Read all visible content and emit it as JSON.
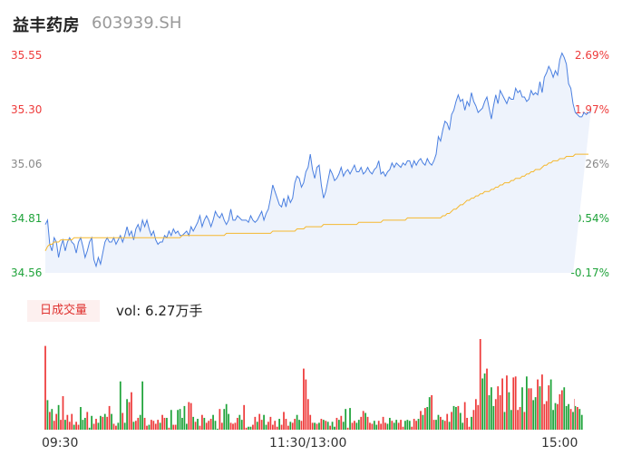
{
  "header": {
    "name": "益丰药房",
    "code": "603939.SH"
  },
  "volume": {
    "badge": "日成交量",
    "label": "vol: 6.27万手"
  },
  "colors": {
    "price_line": "#4a7fe0",
    "avg_line": "#f5b82e",
    "up": "#ee3b3b",
    "down": "#1fa33a",
    "area": "#eef3fc"
  },
  "chart_data": {
    "type": "line",
    "y_left_ticks": [
      "35.55",
      "35.30",
      "35.06",
      "34.81",
      "34.56"
    ],
    "y_right_ticks": [
      "2.69%",
      "1.97%",
      "1.26%",
      "0.54%",
      "-0.17%"
    ],
    "ylim": [
      34.56,
      35.55
    ],
    "x_ticks": [
      "09:30",
      "11:30/13:00",
      "15:00"
    ],
    "n_points": 240,
    "price": [
      34.78,
      34.8,
      34.69,
      34.66,
      34.72,
      34.7,
      34.63,
      34.68,
      34.71,
      34.66,
      34.7,
      34.72,
      34.7,
      34.69,
      34.65,
      34.7,
      34.72,
      34.68,
      34.63,
      34.66,
      34.7,
      34.72,
      34.62,
      34.59,
      34.63,
      34.6,
      34.65,
      34.7,
      34.72,
      34.7,
      34.7,
      34.72,
      34.69,
      34.71,
      34.73,
      34.7,
      34.73,
      34.77,
      34.73,
      34.75,
      34.71,
      34.76,
      34.78,
      34.75,
      34.8,
      34.77,
      34.8,
      34.76,
      34.73,
      34.75,
      34.71,
      34.69,
      34.7,
      34.7,
      34.73,
      34.72,
      34.75,
      34.73,
      34.76,
      34.74,
      34.75,
      34.73,
      34.73,
      34.74,
      34.75,
      34.73,
      34.77,
      34.75,
      34.77,
      34.79,
      34.82,
      34.77,
      34.8,
      34.82,
      34.8,
      34.77,
      34.8,
      34.84,
      34.82,
      34.81,
      34.83,
      34.8,
      34.78,
      34.8,
      34.85,
      34.8,
      34.8,
      34.82,
      34.81,
      34.8,
      34.8,
      34.8,
      34.79,
      34.82,
      34.8,
      34.79,
      34.8,
      34.82,
      34.84,
      34.8,
      34.83,
      34.85,
      34.9,
      34.96,
      34.93,
      34.9,
      34.87,
      34.86,
      34.9,
      34.86,
      34.91,
      34.88,
      34.9,
      34.97,
      35.0,
      34.99,
      34.95,
      34.97,
      35.02,
      35.04,
      35.1,
      35.03,
      34.99,
      35.04,
      35.05,
      34.96,
      34.9,
      34.93,
      34.98,
      35.03,
      35.01,
      34.98,
      34.99,
      35.01,
      35.04,
      35.0,
      35.02,
      35.03,
      35.01,
      35.03,
      35.05,
      35.02,
      35.02,
      35.04,
      35.01,
      35.02,
      35.04,
      35.02,
      35.01,
      35.03,
      35.04,
      35.07,
      35.01,
      35.02,
      35.0,
      35.02,
      35.03,
      35.06,
      35.04,
      35.06,
      35.05,
      35.04,
      35.06,
      35.05,
      35.07,
      35.07,
      35.04,
      35.07,
      35.05,
      35.07,
      35.08,
      35.06,
      35.05,
      35.08,
      35.06,
      35.05,
      35.07,
      35.1,
      35.18,
      35.16,
      35.21,
      35.25,
      35.24,
      35.21,
      35.28,
      35.3,
      35.34,
      35.37,
      35.34,
      35.35,
      35.3,
      35.34,
      35.32,
      35.38,
      35.34,
      35.32,
      35.29,
      35.3,
      35.31,
      35.34,
      35.36,
      35.31,
      35.26,
      35.32,
      35.37,
      35.33,
      35.39,
      35.37,
      35.35,
      35.33,
      35.36,
      35.35,
      35.35,
      35.4,
      35.38,
      35.39,
      35.36,
      35.36,
      35.34,
      35.35,
      35.39,
      35.37,
      35.38,
      35.37,
      35.43,
      35.38,
      35.45,
      35.47,
      35.5,
      35.48,
      35.45,
      35.48,
      35.46,
      35.53,
      35.56,
      35.54,
      35.51,
      35.42,
      35.4,
      35.33,
      35.29,
      35.28,
      35.27,
      35.27,
      35.29,
      35.28,
      35.29,
      35.29
    ],
    "average": [
      34.66,
      34.68,
      34.69,
      34.69,
      34.7,
      34.7,
      34.7,
      34.71,
      34.71,
      34.71,
      34.71,
      34.71,
      34.71,
      34.72,
      34.72,
      34.72,
      34.72,
      34.72,
      34.72,
      34.72,
      34.72,
      34.72,
      34.72,
      34.72,
      34.72,
      34.72,
      34.72,
      34.72,
      34.72,
      34.72,
      34.72,
      34.72,
      34.72,
      34.72,
      34.72,
      34.72,
      34.72,
      34.72,
      34.72,
      34.72,
      34.72,
      34.72,
      34.72,
      34.72,
      34.72,
      34.72,
      34.72,
      34.72,
      34.72,
      34.72,
      34.72,
      34.72,
      34.72,
      34.72,
      34.72,
      34.72,
      34.72,
      34.72,
      34.72,
      34.72,
      34.72,
      34.72,
      34.73,
      34.73,
      34.73,
      34.73,
      34.73,
      34.73,
      34.73,
      34.73,
      34.73,
      34.73,
      34.73,
      34.73,
      34.73,
      34.73,
      34.73,
      34.73,
      34.73,
      34.73,
      34.73,
      34.73,
      34.74,
      34.74,
      34.74,
      34.74,
      34.74,
      34.74,
      34.74,
      34.74,
      34.74,
      34.74,
      34.74,
      34.74,
      34.74,
      34.74,
      34.74,
      34.74,
      34.74,
      34.74,
      34.74,
      34.74,
      34.74,
      34.75,
      34.75,
      34.75,
      34.75,
      34.75,
      34.75,
      34.75,
      34.75,
      34.75,
      34.75,
      34.75,
      34.76,
      34.76,
      34.76,
      34.76,
      34.77,
      34.77,
      34.77,
      34.77,
      34.77,
      34.77,
      34.77,
      34.77,
      34.78,
      34.78,
      34.78,
      34.78,
      34.78,
      34.78,
      34.78,
      34.78,
      34.78,
      34.78,
      34.78,
      34.78,
      34.78,
      34.78,
      34.78,
      34.78,
      34.79,
      34.79,
      34.79,
      34.79,
      34.79,
      34.79,
      34.79,
      34.79,
      34.79,
      34.79,
      34.79,
      34.8,
      34.8,
      34.8,
      34.8,
      34.8,
      34.8,
      34.8,
      34.8,
      34.8,
      34.8,
      34.8,
      34.81,
      34.81,
      34.81,
      34.81,
      34.81,
      34.81,
      34.81,
      34.81,
      34.81,
      34.81,
      34.81,
      34.81,
      34.81,
      34.81,
      34.81,
      34.81,
      34.82,
      34.82,
      34.83,
      34.83,
      34.84,
      34.85,
      34.85,
      34.86,
      34.87,
      34.87,
      34.88,
      34.89,
      34.89,
      34.9,
      34.9,
      34.91,
      34.91,
      34.92,
      34.92,
      34.93,
      34.93,
      34.93,
      34.94,
      34.94,
      34.95,
      34.95,
      34.96,
      34.96,
      34.97,
      34.97,
      34.97,
      34.98,
      34.98,
      34.99,
      34.99,
      34.99,
      35.0,
      35.0,
      35.01,
      35.01,
      35.02,
      35.02,
      35.03,
      35.03,
      35.03,
      35.04,
      35.05,
      35.05,
      35.06,
      35.06,
      35.07,
      35.07,
      35.07,
      35.08,
      35.08,
      35.08,
      35.09,
      35.09,
      35.09,
      35.09,
      35.1,
      35.1,
      35.1,
      35.1,
      35.1,
      35.1,
      35.1
    ],
    "volume": [
      85,
      30,
      18,
      21,
      9,
      16,
      25,
      10,
      34,
      10,
      15,
      8,
      16,
      5,
      8,
      5,
      23,
      10,
      12,
      18,
      2,
      14,
      6,
      11,
      7,
      14,
      13,
      16,
      13,
      24,
      16,
      6,
      4,
      7,
      49,
      17,
      7,
      31,
      28,
      38,
      8,
      9,
      12,
      15,
      49,
      12,
      4,
      5,
      10,
      9,
      6,
      10,
      7,
      15,
      12,
      12,
      2,
      20,
      5,
      5,
      20,
      21,
      12,
      24,
      6,
      28,
      27,
      13,
      8,
      11,
      4,
      15,
      12,
      7,
      9,
      11,
      15,
      9,
      1,
      21,
      7,
      21,
      26,
      16,
      7,
      6,
      7,
      12,
      15,
      10,
      25,
      2,
      3,
      3,
      5,
      13,
      8,
      16,
      10,
      15,
      5,
      8,
      13,
      5,
      9,
      3,
      11,
      5,
      18,
      11,
      4,
      8,
      7,
      11,
      15,
      10,
      9,
      62,
      51,
      31,
      15,
      7,
      7,
      6,
      7,
      11,
      10,
      9,
      8,
      4,
      8,
      3,
      12,
      10,
      14,
      8,
      21,
      2,
      22,
      7,
      9,
      7,
      10,
      13,
      19,
      17,
      13,
      7,
      6,
      9,
      5,
      9,
      6,
      13,
      7,
      6,
      12,
      9,
      7,
      10,
      7,
      10,
      3,
      9,
      10,
      9,
      3,
      11,
      9,
      11,
      19,
      15,
      22,
      23,
      33,
      35,
      10,
      10,
      15,
      13,
      10,
      9,
      16,
      8,
      18,
      24,
      23,
      24,
      17,
      7,
      28,
      12,
      3,
      13,
      20,
      31,
      25,
      92,
      52,
      57,
      62,
      35,
      43,
      24,
      31,
      44,
      35,
      52,
      18,
      55,
      38,
      20,
      53,
      54,
      20,
      23,
      43,
      18,
      54,
      42,
      42,
      30,
      33,
      51,
      44,
      56,
      26,
      29,
      45,
      51,
      20,
      27,
      26,
      36,
      40,
      43,
      24,
      26,
      21,
      18,
      24,
      23,
      21,
      15
    ],
    "vol_dir": [
      "up",
      "down",
      "up",
      "down",
      "up",
      "up",
      "down",
      "up",
      "up",
      "down",
      "up",
      "up",
      "up",
      "down",
      "up",
      "up",
      "down",
      "down",
      "down",
      "up",
      "down",
      "down",
      "up",
      "up",
      "down",
      "down",
      "up",
      "down",
      "up",
      "up",
      "down",
      "up",
      "up",
      "down",
      "down",
      "up",
      "down",
      "down",
      "up",
      "up",
      "down",
      "up",
      "up",
      "down",
      "down",
      "up",
      "up",
      "down",
      "up",
      "up",
      "up",
      "up",
      "down",
      "up",
      "up",
      "down",
      "up",
      "down",
      "up",
      "up",
      "down",
      "down",
      "down",
      "down",
      "down",
      "up",
      "up",
      "down",
      "up",
      "down",
      "up",
      "up",
      "down",
      "up",
      "up",
      "up",
      "down",
      "down",
      "down",
      "up",
      "up",
      "down",
      "down",
      "down",
      "up",
      "up",
      "up",
      "up",
      "down",
      "down",
      "up",
      "up",
      "down",
      "down",
      "up",
      "up",
      "down",
      "up",
      "up",
      "down",
      "down",
      "up",
      "up",
      "up",
      "up",
      "up",
      "down",
      "up",
      "up",
      "up",
      "up",
      "down",
      "up",
      "up",
      "down",
      "down",
      "up",
      "up",
      "up",
      "up",
      "up",
      "up",
      "down",
      "up",
      "down",
      "up",
      "down",
      "up",
      "down",
      "up",
      "down",
      "down",
      "up",
      "down",
      "up",
      "down",
      "down",
      "up",
      "down",
      "up",
      "up",
      "down",
      "down",
      "up",
      "up",
      "down",
      "up",
      "up",
      "up",
      "down",
      "down",
      "up",
      "up",
      "up",
      "up",
      "down",
      "down",
      "up",
      "down",
      "down",
      "up",
      "up",
      "up",
      "down",
      "down",
      "down",
      "up",
      "up",
      "up",
      "down",
      "up",
      "down",
      "up",
      "down",
      "down",
      "up",
      "up",
      "down",
      "down",
      "up",
      "down",
      "up",
      "up",
      "down",
      "up",
      "down",
      "down",
      "up",
      "down",
      "down",
      "up",
      "up",
      "up",
      "down",
      "up",
      "up",
      "up",
      "up",
      "down",
      "down",
      "up",
      "down",
      "down",
      "down",
      "up",
      "up",
      "up",
      "up",
      "down",
      "up",
      "down",
      "down",
      "up",
      "up",
      "up",
      "up",
      "down",
      "up",
      "down",
      "up",
      "up",
      "down",
      "down",
      "up",
      "down",
      "up",
      "up",
      "up",
      "up",
      "down",
      "down",
      "down",
      "up",
      "up",
      "up",
      "down",
      "down",
      "down",
      "up",
      "down",
      "down",
      "up"
    ]
  }
}
